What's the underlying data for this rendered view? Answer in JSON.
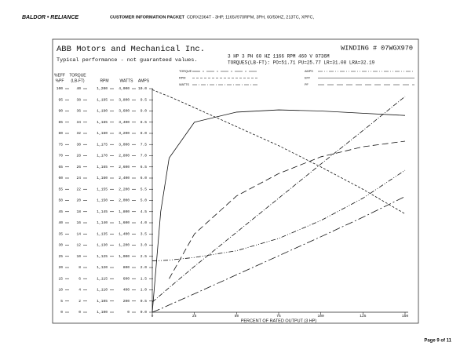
{
  "header": {
    "logo": "BALDOR • RELIANCE",
    "section": "CUSTOMER INFORMATION PACKET",
    "product": "CDRX2364T - 3HP, 1165//970RPM, 3PH, 60/50HZ, 213TC, XPFC,"
  },
  "footer": {
    "page": "Page 9 of 11"
  },
  "chart_data": {
    "type": "line",
    "title": "ABB Motors and Mechanical Inc.",
    "winding": "WINDING # 07WGX970",
    "subtitle": "Typical performance - not guaranteed values.",
    "ratings": "3 HP  3 PH  60 HZ  1166 RPM  460 V  0736M",
    "torques": "TORQUES(LB-FT): PO=51.71  PU=25.77  LR=31.08  LRA=32.19",
    "x_label": "PERCENT OF RATED OUTPUT (3 HP)",
    "xlim": [
      0,
      150
    ],
    "xticks": [
      0,
      25,
      50,
      75,
      100,
      125,
      150
    ],
    "x": [
      0,
      5,
      10,
      25,
      50,
      75,
      100,
      125,
      150
    ],
    "axes": {
      "eff": {
        "label": [
          "%EFF",
          "%PF"
        ],
        "ylim": [
          0,
          100
        ],
        "yticks": [
          0,
          5,
          10,
          15,
          20,
          25,
          30,
          35,
          40,
          45,
          50,
          55,
          60,
          65,
          70,
          75,
          80,
          85,
          90,
          95,
          100
        ]
      },
      "torque": {
        "label": [
          "TORQUE",
          "(LB-FT)"
        ],
        "ylim": [
          0,
          40
        ],
        "yticks": [
          0,
          2,
          4,
          6,
          8,
          10,
          12,
          14,
          16,
          18,
          20,
          22,
          24,
          26,
          28,
          30,
          32,
          34,
          36,
          38,
          40
        ]
      },
      "rpm": {
        "label": [
          "RPM"
        ],
        "ylim": [
          1100,
          1200
        ],
        "yticks": [
          {
            "value": 1100,
            "label": "1,100"
          },
          {
            "value": 1105,
            "label": "1,105"
          },
          {
            "value": 1110,
            "label": "1,110"
          },
          {
            "value": 1115,
            "label": "1,115"
          },
          {
            "value": 1120,
            "label": "1,120"
          },
          {
            "value": 1125,
            "label": "1,125"
          },
          {
            "value": 1130,
            "label": "1,130"
          },
          {
            "value": 1135,
            "label": "1,135"
          },
          {
            "value": 1140,
            "label": "1,140"
          },
          {
            "value": 1145,
            "label": "1,145"
          },
          {
            "value": 1150,
            "label": "1,150"
          },
          {
            "value": 1155,
            "label": "1,155"
          },
          {
            "value": 1160,
            "label": "1,160"
          },
          {
            "value": 1165,
            "label": "1,165"
          },
          {
            "value": 1170,
            "label": "1,170"
          },
          {
            "value": 1175,
            "label": "1,175"
          },
          {
            "value": 1180,
            "label": "1,180"
          },
          {
            "value": 1185,
            "label": "1,185"
          },
          {
            "value": 1190,
            "label": "1,190"
          },
          {
            "value": 1195,
            "label": "1,195"
          },
          {
            "value": 1200,
            "label": "1,200"
          }
        ]
      },
      "watts": {
        "label": [
          "WATTS"
        ],
        "ylim": [
          0,
          4000
        ],
        "yticks": [
          0,
          200,
          400,
          600,
          800,
          {
            "value": 1000,
            "label": "1,000"
          },
          {
            "value": 1200,
            "label": "1,200"
          },
          {
            "value": 1400,
            "label": "1,400"
          },
          {
            "value": 1600,
            "label": "1,600"
          },
          {
            "value": 1800,
            "label": "1,800"
          },
          {
            "value": 2000,
            "label": "2,000"
          },
          {
            "value": 2200,
            "label": "2,200"
          },
          {
            "value": 2400,
            "label": "2,400"
          },
          {
            "value": 2600,
            "label": "2,600"
          },
          {
            "value": 2800,
            "label": "2,800"
          },
          {
            "value": 3000,
            "label": "3,000"
          },
          {
            "value": 3200,
            "label": "3,200"
          },
          {
            "value": 3400,
            "label": "3,400"
          },
          {
            "value": 3600,
            "label": "3,600"
          },
          {
            "value": 3800,
            "label": "3,800"
          },
          {
            "value": 4000,
            "label": "4,000"
          }
        ]
      },
      "amps": {
        "label": [
          "AMPS"
        ],
        "ylim": [
          0,
          10
        ],
        "yticks": [
          {
            "value": 0,
            "label": "0.0"
          },
          0.5,
          {
            "value": 1,
            "label": "1.0"
          },
          1.5,
          {
            "value": 2,
            "label": "2.0"
          },
          2.5,
          {
            "value": 3,
            "label": "3.0"
          },
          3.5,
          {
            "value": 4,
            "label": "4.0"
          },
          4.5,
          {
            "value": 5,
            "label": "5.0"
          },
          5.5,
          {
            "value": 6,
            "label": "6.0"
          },
          6.5,
          {
            "value": 7,
            "label": "7.0"
          },
          7.5,
          {
            "value": 8,
            "label": "8.0"
          },
          8.5,
          {
            "value": 9,
            "label": "9.0"
          },
          9.5,
          {
            "value": 10,
            "label": "10.0"
          }
        ]
      }
    },
    "series": [
      {
        "name": "TORQUE",
        "axis": "torque",
        "color": "#111111",
        "style": "long-dash-dot",
        "values": [
          0,
          0.6,
          1.3,
          3.3,
          6.7,
          10.1,
          13.5,
          17,
          20.7
        ]
      },
      {
        "name": "RPM",
        "axis": "rpm",
        "color": "#111111",
        "style": "short-dash",
        "values": [
          1199.5,
          1198,
          1196.5,
          1191.5,
          1183,
          1174.5,
          1165,
          1155,
          1144
        ]
      },
      {
        "name": "WATTS",
        "axis": "watts",
        "color": "#111111",
        "style": "dash-dot",
        "values": [
          180,
          310,
          440,
          820,
          1430,
          2040,
          2650,
          3250,
          3860
        ]
      },
      {
        "name": "AMPS",
        "axis": "amps",
        "color": "#111111",
        "style": "dash-dot-dot",
        "values": [
          2.3,
          2.31,
          2.33,
          2.45,
          2.75,
          3.3,
          4.1,
          5.1,
          6.35
        ]
      },
      {
        "name": "EFF",
        "axis": "eff",
        "color": "#111111",
        "style": "solid",
        "values": [
          0,
          45,
          69,
          85,
          89.5,
          90.5,
          90,
          89,
          88
        ]
      },
      {
        "name": "PF",
        "axis": "eff",
        "color": "#111111",
        "style": "long-dash",
        "values": [
          null,
          null,
          15,
          35,
          52,
          62,
          69.5,
          74,
          76.5
        ]
      }
    ]
  }
}
